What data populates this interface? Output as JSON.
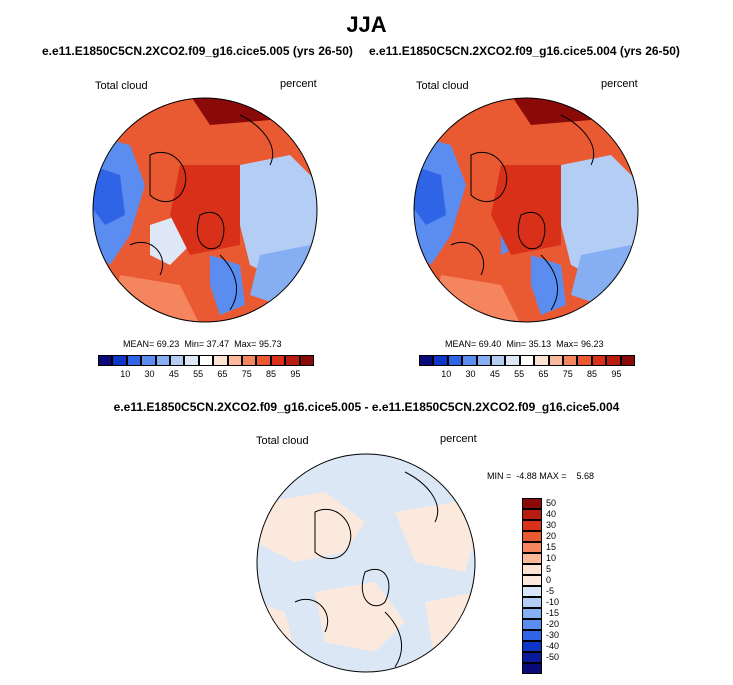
{
  "title": "JJA",
  "panels": [
    {
      "subtitle": "e.e11.E1850C5CN.2XCO2.f09_g16.cice5.005 (yrs 26-50)",
      "variable": "Total cloud",
      "units": "percent",
      "stats": {
        "mean_label": "MEAN=",
        "mean": "69.23",
        "min_label": "Min=",
        "min": "37.47",
        "max_label": "Max=",
        "max": "95.73"
      }
    },
    {
      "subtitle": "e.e11.E1850C5CN.2XCO2.f09_g16.cice5.004 (yrs 26-50)",
      "variable": "Total cloud",
      "units": "percent",
      "stats": {
        "mean_label": "MEAN=",
        "mean": "69.40",
        "min_label": "Min=",
        "min": "35.13",
        "max_label": "Max=",
        "max": "96.23"
      }
    }
  ],
  "diff_panel": {
    "subtitle": "e.e11.E1850C5CN.2XCO2.f09_g16.cice5.005 - e.e11.E1850C5CN.2XCO2.f09_g16.cice5.004",
    "variable": "Total cloud",
    "units": "percent",
    "minmax_text": "MIN =  -4.88 MAX =    5.68"
  },
  "chart_data": [
    {
      "type": "heatmap",
      "projection": "polar stereographic (north pole)",
      "title": "e.e11.E1850C5CN.2XCO2.f09_g16.cice5.005 (yrs 26-50)",
      "mean": 69.23,
      "min": 37.47,
      "max": 95.73,
      "colorbar_ticks": [
        10,
        30,
        45,
        55,
        65,
        75,
        85,
        95
      ],
      "colorbar_colors": [
        "#0a0a7a",
        "#1036c8",
        "#2f64e6",
        "#5b8cf0",
        "#86aef3",
        "#b4cdf5",
        "#dde7f5",
        "#ffffff",
        "#fde3d3",
        "#f9b99a",
        "#f4855e",
        "#ea5a32",
        "#d93119",
        "#b81d0f",
        "#8a0a0a"
      ]
    },
    {
      "type": "heatmap",
      "projection": "polar stereographic (north pole)",
      "title": "e.e11.E1850C5CN.2XCO2.f09_g16.cice5.004 (yrs 26-50)",
      "mean": 69.4,
      "min": 35.13,
      "max": 96.23,
      "colorbar_ticks": [
        10,
        30,
        45,
        55,
        65,
        75,
        85,
        95
      ],
      "colorbar_colors": [
        "#0a0a7a",
        "#1036c8",
        "#2f64e6",
        "#5b8cf0",
        "#86aef3",
        "#b4cdf5",
        "#dde7f5",
        "#ffffff",
        "#fde3d3",
        "#f9b99a",
        "#f4855e",
        "#ea5a32",
        "#d93119",
        "#b81d0f",
        "#8a0a0a"
      ]
    },
    {
      "type": "heatmap",
      "projection": "polar stereographic (north pole)",
      "title": "e.e11.E1850C5CN.2XCO2.f09_g16.cice5.005 - e.e11.E1850C5CN.2XCO2.f09_g16.cice5.004",
      "min": -4.88,
      "max": 5.68,
      "colorbar_ticks": [
        50,
        40,
        30,
        20,
        15,
        10,
        5,
        0,
        -5,
        -10,
        -15,
        -20,
        -30,
        -40,
        -50
      ],
      "colorbar_colors": [
        "#8a0a0a",
        "#b81d0f",
        "#d93119",
        "#ea5a32",
        "#f4855e",
        "#f9b99a",
        "#fde3d3",
        "#fbe9de",
        "#d8e6f7",
        "#b4cdf5",
        "#86aef3",
        "#5b8cf0",
        "#2f64e6",
        "#1036c8",
        "#0a1a9a",
        "#0a0a7a"
      ]
    }
  ]
}
